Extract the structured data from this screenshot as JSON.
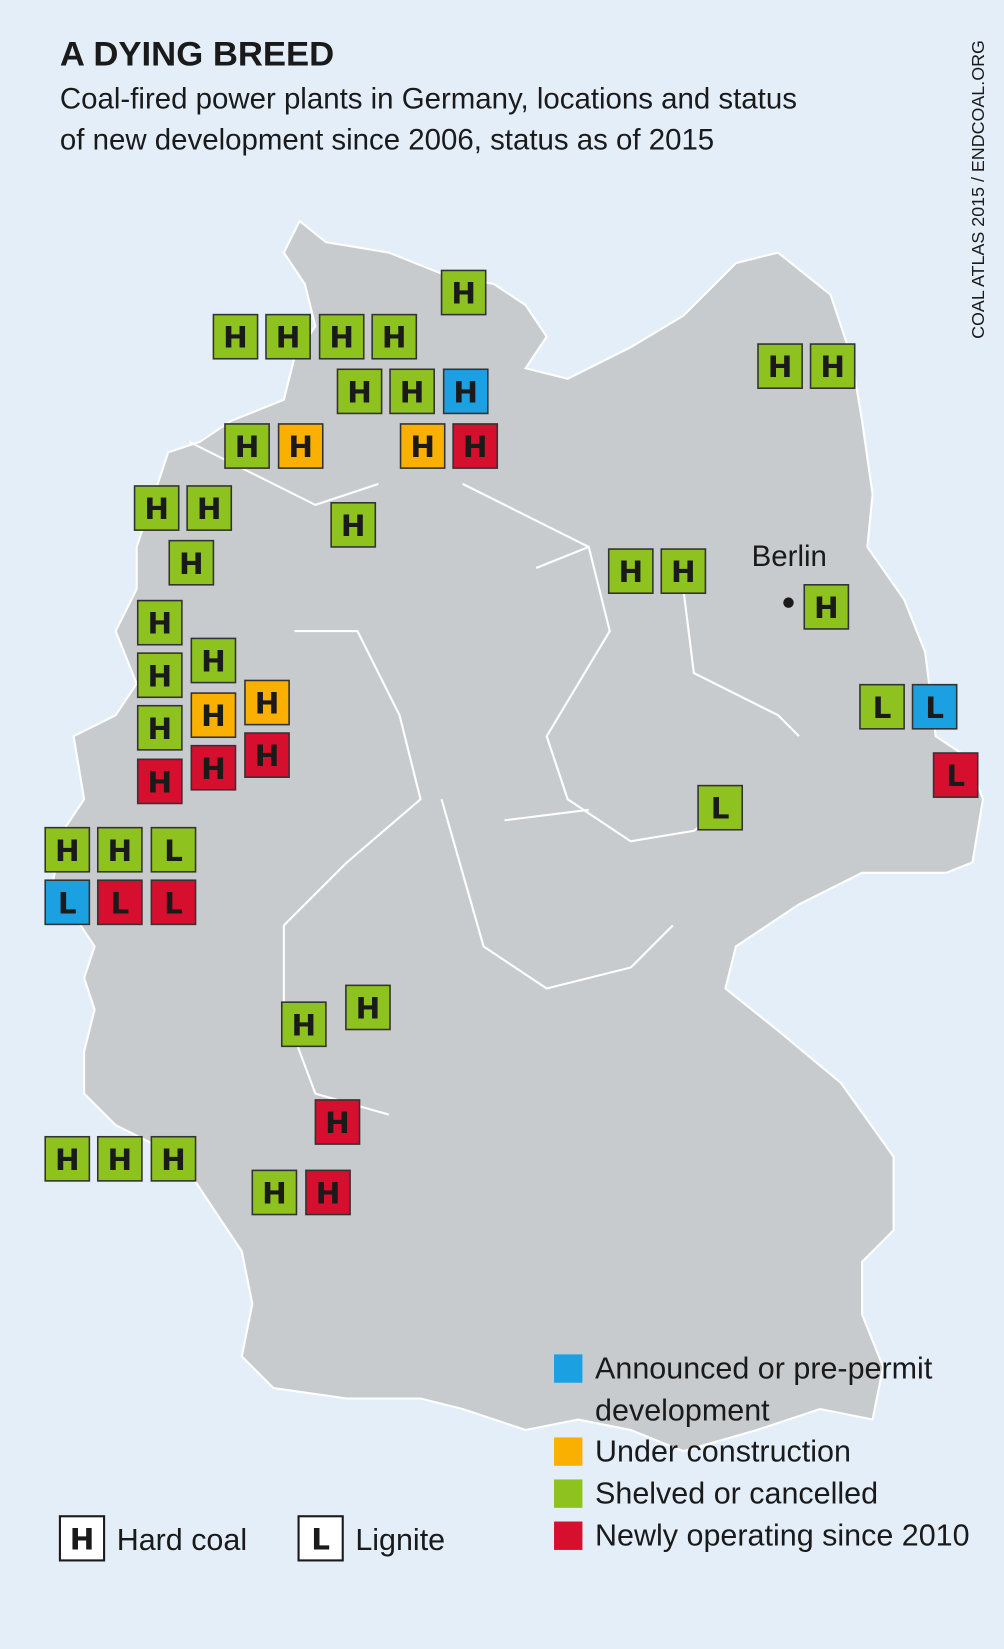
{
  "header": {
    "title": "A DYING BREED",
    "subtitle": [
      "Coal-fired power plants in Germany, locations and status",
      "of new development since 2006, status as of 2015"
    ],
    "source": "COAL ATLAS 2015 / ENDCOAL.ORG"
  },
  "city": {
    "label": "Berlin"
  },
  "status_legend": [
    {
      "text": "Announced or pre-permit development",
      "color": "#1ba1e2"
    },
    {
      "text": "Under construction",
      "color": "#f9b000"
    },
    {
      "text": "Shelved or cancelled",
      "color": "#8dc21f"
    },
    {
      "text": "Newly operating since 2010",
      "color": "#d50f2d"
    }
  ],
  "type_legend": [
    {
      "label": "H",
      "text": "Hard coal"
    },
    {
      "label": "L",
      "text": "Lignite"
    }
  ],
  "plants": [
    {
      "label": "H",
      "color": "#8dc21f"
    },
    {
      "label": "H",
      "color": "#8dc21f"
    },
    {
      "label": "H",
      "color": "#8dc21f"
    },
    {
      "label": "H",
      "color": "#8dc21f"
    },
    {
      "label": "H",
      "color": "#8dc21f"
    },
    {
      "label": "H",
      "color": "#8dc21f"
    },
    {
      "label": "H",
      "color": "#8dc21f"
    },
    {
      "label": "H",
      "color": "#1ba1e2"
    },
    {
      "label": "H",
      "color": "#8dc21f"
    },
    {
      "label": "H",
      "color": "#f9b000"
    },
    {
      "label": "H",
      "color": "#f9b000"
    },
    {
      "label": "H",
      "color": "#d50f2d"
    },
    {
      "label": "H",
      "color": "#8dc21f"
    },
    {
      "label": "H",
      "color": "#8dc21f"
    },
    {
      "label": "H",
      "color": "#8dc21f"
    },
    {
      "label": "H",
      "color": "#8dc21f"
    },
    {
      "label": "H",
      "color": "#8dc21f"
    },
    {
      "label": "H",
      "color": "#8dc21f"
    },
    {
      "label": "H",
      "color": "#8dc21f"
    },
    {
      "label": "H",
      "color": "#8dc21f"
    },
    {
      "label": "H",
      "color": "#8dc21f"
    },
    {
      "label": "H",
      "color": "#8dc21f"
    },
    {
      "label": "H",
      "color": "#8dc21f"
    },
    {
      "label": "H",
      "color": "#8dc21f"
    },
    {
      "label": "H",
      "color": "#8dc21f"
    },
    {
      "label": "H",
      "color": "#f9b000"
    },
    {
      "label": "H",
      "color": "#f9b000"
    },
    {
      "label": "H",
      "color": "#d50f2d"
    },
    {
      "label": "H",
      "color": "#d50f2d"
    },
    {
      "label": "H",
      "color": "#d50f2d"
    },
    {
      "label": "L",
      "color": "#8dc21f"
    },
    {
      "label": "L",
      "color": "#1ba1e2"
    },
    {
      "label": "L",
      "color": "#d50f2d"
    },
    {
      "label": "L",
      "color": "#8dc21f"
    },
    {
      "label": "H",
      "color": "#8dc21f"
    },
    {
      "label": "H",
      "color": "#8dc21f"
    },
    {
      "label": "L",
      "color": "#8dc21f"
    },
    {
      "label": "L",
      "color": "#1ba1e2"
    },
    {
      "label": "L",
      "color": "#d50f2d"
    },
    {
      "label": "L",
      "color": "#d50f2d"
    },
    {
      "label": "H",
      "color": "#8dc21f"
    },
    {
      "label": "H",
      "color": "#8dc21f"
    },
    {
      "label": "H",
      "color": "#d50f2d"
    },
    {
      "label": "H",
      "color": "#8dc21f"
    },
    {
      "label": "H",
      "color": "#8dc21f"
    },
    {
      "label": "H",
      "color": "#8dc21f"
    },
    {
      "label": "H",
      "color": "#8dc21f"
    },
    {
      "label": "H",
      "color": "#d50f2d"
    }
  ]
}
